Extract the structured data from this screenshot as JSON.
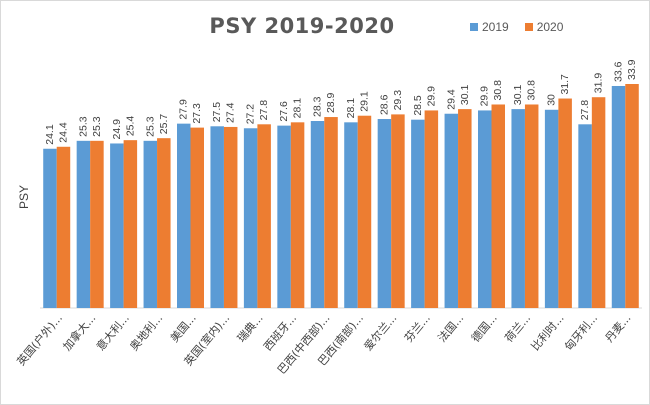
{
  "chart_data": {
    "type": "bar",
    "title": "PSY 2019-2020",
    "ylabel": "PSY",
    "xlabel": "",
    "ylim": [
      0,
      34
    ],
    "grid": false,
    "legend_position": "top-right",
    "categories": [
      "英国(户外)...",
      "加拿大...",
      "意大利...",
      "奥地利...",
      "美国...",
      "英国(室内)...",
      "瑞典...",
      "西班牙...",
      "巴西(中西部)...",
      "巴西(南部)...",
      "爱尔兰...",
      "芬兰...",
      "法国...",
      "德国...",
      "荷兰...",
      "比利时...",
      "匈牙利...",
      "丹麦..."
    ],
    "series": [
      {
        "name": "2019",
        "color": "#5b9bd5",
        "values": [
          24.1,
          25.3,
          24.9,
          25.3,
          27.9,
          27.5,
          27.2,
          27.6,
          28.3,
          28.1,
          28.6,
          28.5,
          29.4,
          29.9,
          30.1,
          30,
          27.8,
          33.6
        ],
        "labels": [
          "24.1",
          "25.3",
          "24.9",
          "25.3",
          "27.9",
          "27.5",
          "27.2",
          "27.6",
          "28.3",
          "28.1",
          "28.6",
          "28.5",
          "29.4",
          "29.9",
          "30.1",
          "30",
          "27.8",
          "33.6"
        ]
      },
      {
        "name": "2020",
        "color": "#ed7d31",
        "values": [
          24.4,
          25.3,
          25.4,
          25.7,
          27.3,
          27.4,
          27.8,
          28.1,
          28.9,
          29.1,
          29.3,
          29.9,
          30.1,
          30.8,
          30.8,
          31.7,
          31.9,
          33.9
        ],
        "labels": [
          "24.4",
          "25.3",
          "25.4",
          "25.7",
          "27.3",
          "27.4",
          "27.8",
          "28.1",
          "28.9",
          "29.1",
          "29.3",
          "29.9",
          "30.1",
          "30.8",
          "30.8",
          "31.7",
          "31.9",
          "33.9"
        ]
      }
    ]
  }
}
